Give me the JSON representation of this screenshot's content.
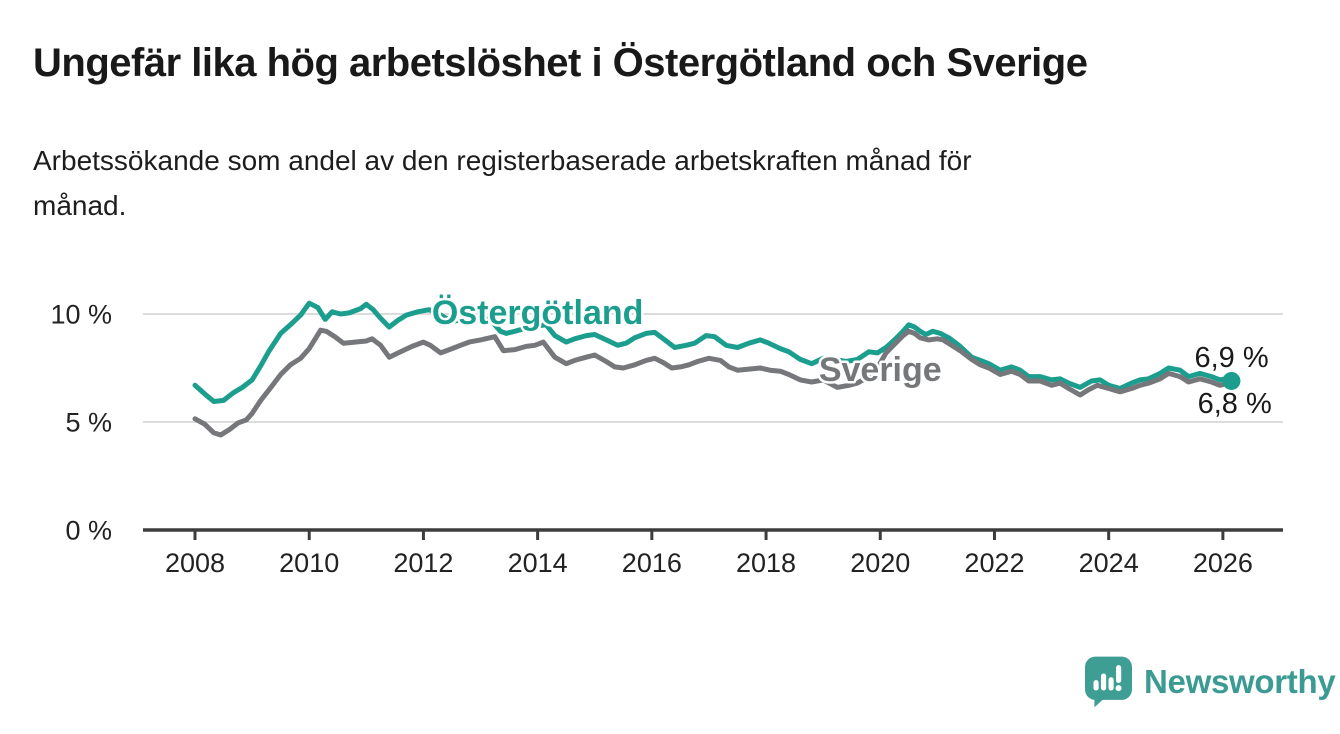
{
  "header": {
    "title": "Ungefär lika hög arbetslöshet i Östergötland och Sverige",
    "subtitle": {
      "line1": "Arbetssökande som andel av den registerbaserade arbetskraften månad för",
      "line2": "månad."
    }
  },
  "footer": {
    "logo_text": "Newsworthy"
  },
  "chart_data": {
    "type": "line",
    "title": "Ungefär lika hög arbetslöshet i Östergötland och Sverige",
    "subtitle": "Arbetssökande som andel av den registerbaserade arbetskraften månad för månad.",
    "grid": true,
    "legend_position": "inline-labels",
    "style": {
      "grid_color": "#dcdcdc",
      "axis_color": "#3d3d3d",
      "tick_label_color": "#222222"
    },
    "x_axis": {
      "range": [
        2007.1,
        2027.05
      ],
      "ticks": [
        {
          "year": 2008,
          "label": "2008"
        },
        {
          "year": 2010,
          "label": "2010"
        },
        {
          "year": 2012,
          "label": "2012"
        },
        {
          "year": 2014,
          "label": "2014"
        },
        {
          "year": 2016,
          "label": "2016"
        },
        {
          "year": 2018,
          "label": "2018"
        },
        {
          "year": 2020,
          "label": "2020"
        },
        {
          "year": 2022,
          "label": "2022"
        },
        {
          "year": 2024,
          "label": "2024"
        },
        {
          "year": 2026,
          "label": "2026"
        }
      ]
    },
    "y_axis": {
      "range": [
        0,
        11.4
      ],
      "unit": "%",
      "ticks": [
        {
          "value": 0,
          "label": "0 %"
        },
        {
          "value": 5,
          "label": "5 %"
        },
        {
          "value": 10,
          "label": "10 %"
        }
      ]
    },
    "series": [
      {
        "name": "Östergötland",
        "color": "#1b9e8e",
        "end_label": "6,9 %",
        "end_value": 6.9,
        "label_pos": {
          "year": 2014.0,
          "value": 10.1
        },
        "points": [
          [
            2008.0,
            6.7
          ],
          [
            2008.17,
            6.3
          ],
          [
            2008.33,
            5.95
          ],
          [
            2008.5,
            6.0
          ],
          [
            2008.67,
            6.35
          ],
          [
            2008.83,
            6.6
          ],
          [
            2009.0,
            6.95
          ],
          [
            2009.15,
            7.6
          ],
          [
            2009.3,
            8.3
          ],
          [
            2009.5,
            9.1
          ],
          [
            2009.67,
            9.5
          ],
          [
            2009.85,
            9.95
          ],
          [
            2010.0,
            10.5
          ],
          [
            2010.15,
            10.3
          ],
          [
            2010.28,
            9.75
          ],
          [
            2010.4,
            10.1
          ],
          [
            2010.55,
            10.0
          ],
          [
            2010.7,
            10.05
          ],
          [
            2010.9,
            10.25
          ],
          [
            2011.0,
            10.45
          ],
          [
            2011.12,
            10.2
          ],
          [
            2011.25,
            9.8
          ],
          [
            2011.4,
            9.4
          ],
          [
            2011.55,
            9.7
          ],
          [
            2011.7,
            9.95
          ],
          [
            2011.9,
            10.1
          ],
          [
            2012.1,
            10.2
          ],
          [
            2012.3,
            9.95
          ],
          [
            2012.5,
            9.65
          ],
          [
            2012.7,
            9.75
          ],
          [
            2012.85,
            9.85
          ],
          [
            2013.0,
            9.9
          ],
          [
            2013.2,
            9.65
          ],
          [
            2013.35,
            9.2
          ],
          [
            2013.45,
            9.1
          ],
          [
            2013.6,
            9.2
          ],
          [
            2013.8,
            9.35
          ],
          [
            2014.0,
            9.45
          ],
          [
            2014.15,
            9.5
          ],
          [
            2014.3,
            9.0
          ],
          [
            2014.5,
            8.7
          ],
          [
            2014.65,
            8.85
          ],
          [
            2014.85,
            9.0
          ],
          [
            2015.0,
            9.05
          ],
          [
            2015.2,
            8.8
          ],
          [
            2015.4,
            8.55
          ],
          [
            2015.55,
            8.65
          ],
          [
            2015.7,
            8.9
          ],
          [
            2015.9,
            9.1
          ],
          [
            2016.05,
            9.15
          ],
          [
            2016.2,
            8.85
          ],
          [
            2016.4,
            8.45
          ],
          [
            2016.6,
            8.55
          ],
          [
            2016.75,
            8.65
          ],
          [
            2016.95,
            9.0
          ],
          [
            2017.1,
            8.95
          ],
          [
            2017.3,
            8.55
          ],
          [
            2017.5,
            8.45
          ],
          [
            2017.7,
            8.65
          ],
          [
            2017.9,
            8.8
          ],
          [
            2018.05,
            8.65
          ],
          [
            2018.25,
            8.4
          ],
          [
            2018.4,
            8.25
          ],
          [
            2018.6,
            7.9
          ],
          [
            2018.8,
            7.7
          ],
          [
            2019.0,
            7.95
          ],
          [
            2019.2,
            7.9
          ],
          [
            2019.4,
            7.8
          ],
          [
            2019.6,
            7.9
          ],
          [
            2019.8,
            8.25
          ],
          [
            2019.95,
            8.2
          ],
          [
            2020.1,
            8.45
          ],
          [
            2020.25,
            8.8
          ],
          [
            2020.4,
            9.2
          ],
          [
            2020.5,
            9.5
          ],
          [
            2020.6,
            9.4
          ],
          [
            2020.7,
            9.2
          ],
          [
            2020.8,
            9.05
          ],
          [
            2020.92,
            9.2
          ],
          [
            2021.05,
            9.1
          ],
          [
            2021.2,
            8.9
          ],
          [
            2021.4,
            8.5
          ],
          [
            2021.6,
            8.0
          ],
          [
            2021.75,
            7.85
          ],
          [
            2021.9,
            7.7
          ],
          [
            2022.1,
            7.4
          ],
          [
            2022.3,
            7.55
          ],
          [
            2022.45,
            7.4
          ],
          [
            2022.6,
            7.1
          ],
          [
            2022.8,
            7.1
          ],
          [
            2023.0,
            6.95
          ],
          [
            2023.15,
            7.0
          ],
          [
            2023.3,
            6.8
          ],
          [
            2023.5,
            6.6
          ],
          [
            2023.7,
            6.9
          ],
          [
            2023.85,
            6.95
          ],
          [
            2024.0,
            6.7
          ],
          [
            2024.2,
            6.55
          ],
          [
            2024.4,
            6.8
          ],
          [
            2024.55,
            6.95
          ],
          [
            2024.7,
            7.0
          ],
          [
            2024.9,
            7.25
          ],
          [
            2025.05,
            7.5
          ],
          [
            2025.25,
            7.4
          ],
          [
            2025.4,
            7.1
          ],
          [
            2025.6,
            7.25
          ],
          [
            2025.8,
            7.1
          ],
          [
            2025.95,
            6.95
          ],
          [
            2026.05,
            7.0
          ],
          [
            2026.15,
            6.9
          ]
        ]
      },
      {
        "name": "Sverige",
        "color": "#76777a",
        "end_label": "6,8 %",
        "end_value": 6.8,
        "label_pos": {
          "year": 2020.0,
          "value": 7.45
        },
        "points": [
          [
            2008.0,
            5.15
          ],
          [
            2008.17,
            4.9
          ],
          [
            2008.33,
            4.5
          ],
          [
            2008.45,
            4.4
          ],
          [
            2008.6,
            4.65
          ],
          [
            2008.75,
            4.95
          ],
          [
            2008.9,
            5.1
          ],
          [
            2009.0,
            5.4
          ],
          [
            2009.15,
            6.0
          ],
          [
            2009.3,
            6.5
          ],
          [
            2009.5,
            7.2
          ],
          [
            2009.67,
            7.65
          ],
          [
            2009.85,
            7.95
          ],
          [
            2010.0,
            8.4
          ],
          [
            2010.2,
            9.25
          ],
          [
            2010.3,
            9.2
          ],
          [
            2010.45,
            8.95
          ],
          [
            2010.6,
            8.65
          ],
          [
            2010.8,
            8.7
          ],
          [
            2011.0,
            8.75
          ],
          [
            2011.1,
            8.85
          ],
          [
            2011.25,
            8.55
          ],
          [
            2011.4,
            8.0
          ],
          [
            2011.6,
            8.25
          ],
          [
            2011.8,
            8.5
          ],
          [
            2012.0,
            8.7
          ],
          [
            2012.12,
            8.55
          ],
          [
            2012.3,
            8.2
          ],
          [
            2012.5,
            8.4
          ],
          [
            2012.65,
            8.55
          ],
          [
            2012.8,
            8.7
          ],
          [
            2013.0,
            8.8
          ],
          [
            2013.25,
            8.95
          ],
          [
            2013.4,
            8.3
          ],
          [
            2013.6,
            8.35
          ],
          [
            2013.8,
            8.5
          ],
          [
            2013.95,
            8.55
          ],
          [
            2014.1,
            8.7
          ],
          [
            2014.3,
            8.0
          ],
          [
            2014.5,
            7.7
          ],
          [
            2014.65,
            7.85
          ],
          [
            2014.85,
            8.0
          ],
          [
            2015.0,
            8.1
          ],
          [
            2015.2,
            7.8
          ],
          [
            2015.35,
            7.55
          ],
          [
            2015.5,
            7.5
          ],
          [
            2015.7,
            7.65
          ],
          [
            2015.9,
            7.85
          ],
          [
            2016.05,
            7.95
          ],
          [
            2016.2,
            7.75
          ],
          [
            2016.35,
            7.5
          ],
          [
            2016.5,
            7.55
          ],
          [
            2016.65,
            7.65
          ],
          [
            2016.8,
            7.8
          ],
          [
            2017.0,
            7.95
          ],
          [
            2017.2,
            7.85
          ],
          [
            2017.35,
            7.55
          ],
          [
            2017.5,
            7.4
          ],
          [
            2017.7,
            7.45
          ],
          [
            2017.9,
            7.5
          ],
          [
            2018.07,
            7.4
          ],
          [
            2018.25,
            7.35
          ],
          [
            2018.4,
            7.2
          ],
          [
            2018.6,
            6.95
          ],
          [
            2018.8,
            6.85
          ],
          [
            2019.0,
            6.95
          ],
          [
            2019.25,
            6.6
          ],
          [
            2019.45,
            6.7
          ],
          [
            2019.6,
            6.8
          ],
          [
            2019.8,
            7.1
          ],
          [
            2019.95,
            7.5
          ],
          [
            2020.1,
            8.2
          ],
          [
            2020.25,
            8.6
          ],
          [
            2020.4,
            9.0
          ],
          [
            2020.5,
            9.2
          ],
          [
            2020.6,
            9.1
          ],
          [
            2020.7,
            8.9
          ],
          [
            2020.85,
            8.8
          ],
          [
            2021.0,
            8.85
          ],
          [
            2021.1,
            8.8
          ],
          [
            2021.25,
            8.55
          ],
          [
            2021.4,
            8.3
          ],
          [
            2021.6,
            7.9
          ],
          [
            2021.75,
            7.65
          ],
          [
            2021.9,
            7.5
          ],
          [
            2022.1,
            7.2
          ],
          [
            2022.3,
            7.35
          ],
          [
            2022.45,
            7.2
          ],
          [
            2022.6,
            6.9
          ],
          [
            2022.8,
            6.9
          ],
          [
            2023.0,
            6.7
          ],
          [
            2023.15,
            6.8
          ],
          [
            2023.3,
            6.55
          ],
          [
            2023.5,
            6.25
          ],
          [
            2023.65,
            6.5
          ],
          [
            2023.8,
            6.7
          ],
          [
            2024.0,
            6.55
          ],
          [
            2024.2,
            6.4
          ],
          [
            2024.4,
            6.55
          ],
          [
            2024.55,
            6.7
          ],
          [
            2024.7,
            6.8
          ],
          [
            2024.9,
            7.0
          ],
          [
            2025.05,
            7.25
          ],
          [
            2025.25,
            7.1
          ],
          [
            2025.4,
            6.85
          ],
          [
            2025.6,
            7.0
          ],
          [
            2025.8,
            6.85
          ],
          [
            2025.95,
            6.7
          ],
          [
            2026.1,
            6.8
          ]
        ]
      }
    ]
  }
}
